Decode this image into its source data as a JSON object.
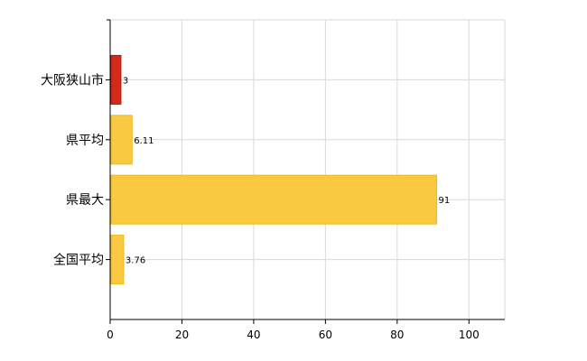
{
  "chart_data": {
    "type": "bar",
    "orientation": "horizontal",
    "title": "",
    "xlabel": "",
    "ylabel": "",
    "categories": [
      "大阪狭山市",
      "県平均",
      "県最大",
      "全国平均"
    ],
    "values": [
      3,
      6.11,
      91,
      3.76
    ],
    "data_labels": [
      "3",
      "6.11",
      "91",
      "3.76"
    ],
    "xlim": [
      0,
      110
    ],
    "x_ticks": [
      0,
      20,
      40,
      60,
      80,
      100
    ],
    "x_tick_labels": [
      "0",
      "20",
      "40",
      "60",
      "80",
      "100"
    ],
    "grid": true,
    "legend": "none",
    "colors": {
      "highlight": "#d42a1a",
      "highlight_stroke": "#a81c10",
      "default": "#f9c93f",
      "default_stroke": "#f0b820",
      "grid": "#d9d9d9",
      "axis": "#000000"
    },
    "highlight_index": 0
  }
}
